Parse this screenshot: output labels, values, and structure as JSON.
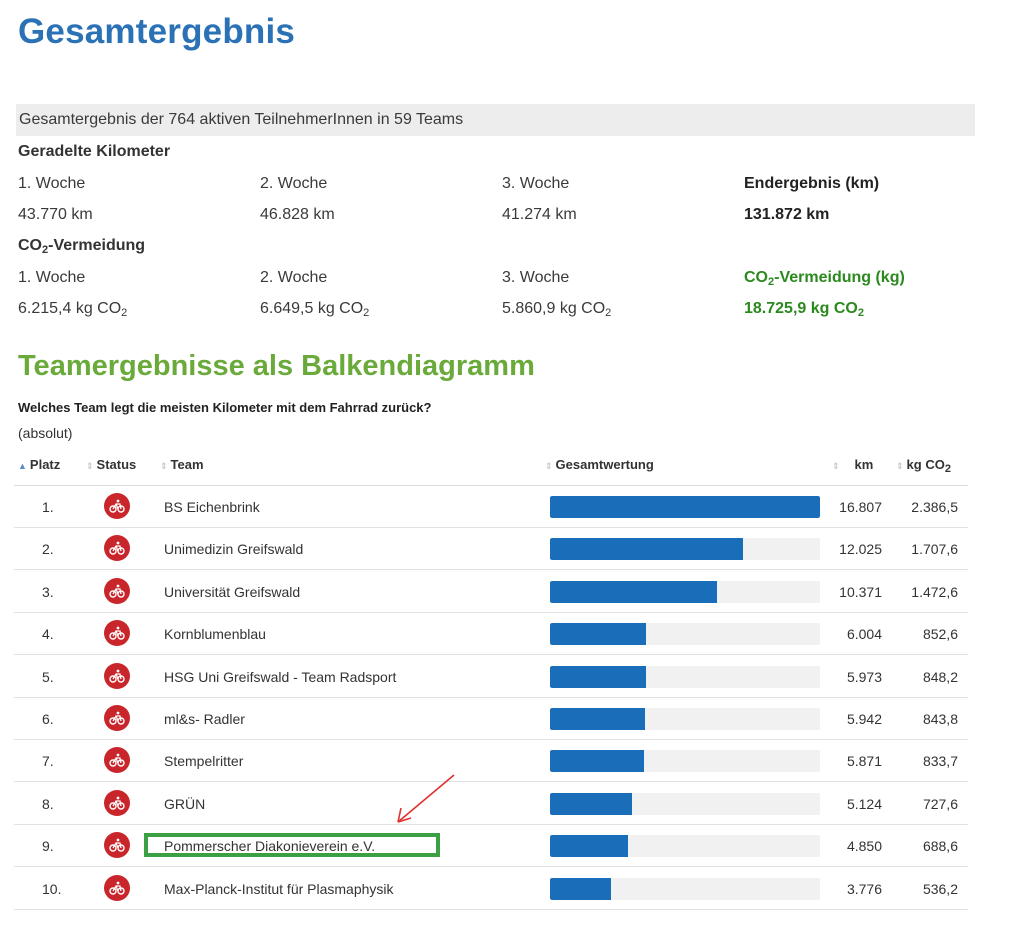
{
  "title": "Gesamtergebnis",
  "summary": "Gesamtergebnis der 764 aktiven TeilnehmerInnen in 59 Teams",
  "km_section": {
    "label": "Geradelte Kilometer",
    "weeks": [
      {
        "label": "1. Woche",
        "value": "43.770 km"
      },
      {
        "label": "2. Woche",
        "value": "46.828 km"
      },
      {
        "label": "3. Woche",
        "value": "41.274 km"
      }
    ],
    "total_label": "Endergebnis (km)",
    "total_value": "131.872 km"
  },
  "co2_section": {
    "label_prefix": "CO",
    "label_sub": "2",
    "label_suffix": "-Vermeidung",
    "weeks": [
      {
        "label": "1. Woche",
        "value": "6.215,4 kg CO",
        "sub": "2"
      },
      {
        "label": "2. Woche",
        "value": "6.649,5 kg CO",
        "sub": "2"
      },
      {
        "label": "3. Woche",
        "value": "5.860,9 kg CO",
        "sub": "2"
      }
    ],
    "total_label_prefix": "CO",
    "total_label_sub": "2",
    "total_label_suffix": "-Vermeidung (kg)",
    "total_value": "18.725,9 kg CO",
    "total_value_sub": "2"
  },
  "team_heading": "Teamergebnisse als Balkendiagramm",
  "question": "Welches Team legt die meisten Kilometer mit dem Fahrrad zurück?",
  "mode": "(absolut)",
  "table": {
    "headers": {
      "rank": "Platz",
      "status": "Status",
      "team": "Team",
      "score": "Gesamtwertung",
      "km": "km",
      "co2_prefix": "kg CO",
      "co2_sub": "2"
    },
    "rows": [
      {
        "rank": "1.",
        "team": "BS Eichenbrink",
        "km": "16.807",
        "co2": "2.386,5",
        "share": 1.0
      },
      {
        "rank": "2.",
        "team": "Unimedizin Greifswald",
        "km": "12.025",
        "co2": "1.707,6",
        "share": 0.7155
      },
      {
        "rank": "3.",
        "team": "Universität Greifswald",
        "km": "10.371",
        "co2": "1.472,6",
        "share": 0.617
      },
      {
        "rank": "4.",
        "team": "Kornblumenblau",
        "km": "6.004",
        "co2": "852,6",
        "share": 0.3572
      },
      {
        "rank": "5.",
        "team": "HSG Uni Greifswald - Team Radsport",
        "km": "5.973",
        "co2": "848,2",
        "share": 0.3554
      },
      {
        "rank": "6.",
        "team": "ml&s- Radler",
        "km": "5.942",
        "co2": "843,8",
        "share": 0.3535
      },
      {
        "rank": "7.",
        "team": "Stempelritter",
        "km": "5.871",
        "co2": "833,7",
        "share": 0.3493
      },
      {
        "rank": "8.",
        "team": "GRÜN",
        "km": "5.124",
        "co2": "727,6",
        "share": 0.3049
      },
      {
        "rank": "9.",
        "team": "Pommerscher Diakonieverein e.V.",
        "km": "4.850",
        "co2": "688,6",
        "share": 0.2886
      },
      {
        "rank": "10.",
        "team": "Max-Planck-Institut für Plasmaphysik",
        "km": "3.776",
        "co2": "536,2",
        "share": 0.2247
      }
    ]
  },
  "colors": {
    "title_blue": "#2a72b5",
    "heading_green": "#6aaa3a",
    "co2_green": "#2b8a1e",
    "bar_blue": "#1a6db8",
    "status_red": "#c8262b",
    "highlight_green": "#3aa043",
    "arrow_red": "#e03030"
  },
  "icons": {
    "status": "cyclist-icon",
    "sort": "sort-arrows-icon"
  }
}
